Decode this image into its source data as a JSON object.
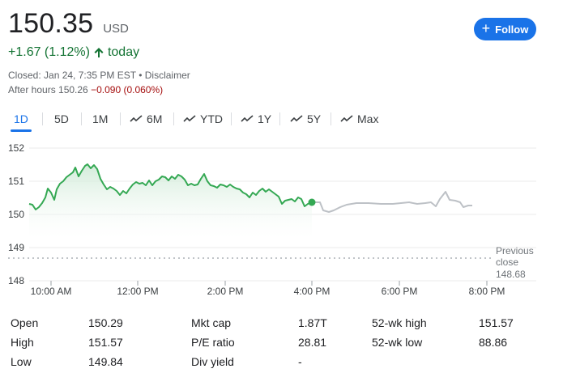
{
  "quote": {
    "price": "150.35",
    "currency": "USD",
    "change": "+1.67 (1.12%)",
    "change_period": "today",
    "closed_text": "Closed: Jan 24, 7:35 PM EST • Disclaimer",
    "after_hours_label": "After hours 150.26",
    "after_hours_change": "−0.090 (0.060%)"
  },
  "follow_button": {
    "label": "Follow",
    "icon": "plus-icon"
  },
  "tabs": [
    {
      "label": "1D",
      "icon": "",
      "active": true
    },
    {
      "label": "5D",
      "icon": ""
    },
    {
      "label": "1M",
      "icon": ""
    },
    {
      "label": "6M",
      "icon": "trend-icon"
    },
    {
      "label": "YTD",
      "icon": "trend-icon"
    },
    {
      "label": "1Y",
      "icon": "trend-icon"
    },
    {
      "label": "5Y",
      "icon": "trend-icon"
    },
    {
      "label": "Max",
      "icon": "trend-icon"
    }
  ],
  "chart_data": {
    "type": "line",
    "y_ticks": [
      "152",
      "151",
      "150",
      "149",
      "148"
    ],
    "ylim": [
      148,
      152
    ],
    "x_ticks": [
      "10:00 AM",
      "12:00 PM",
      "2:00 PM",
      "4:00 PM",
      "6:00 PM",
      "8:00 PM"
    ],
    "previous_close_label": [
      "Previous",
      "close",
      "148.68"
    ],
    "previous_close": 148.68,
    "colors": {
      "regular": "#34a853",
      "after_hours": "#bdc1c6",
      "fill": "#e6f4ea"
    }
  },
  "stats": {
    "col1": [
      {
        "label": "Open",
        "value": "150.29"
      },
      {
        "label": "High",
        "value": "151.57"
      },
      {
        "label": "Low",
        "value": "149.84"
      }
    ],
    "col2": [
      {
        "label": "Mkt cap",
        "value": "1.87T"
      },
      {
        "label": "P/E ratio",
        "value": "28.81"
      },
      {
        "label": "Div yield",
        "value": "-"
      }
    ],
    "col3": [
      {
        "label": "52-wk high",
        "value": "151.57"
      },
      {
        "label": "52-wk low",
        "value": "88.86"
      }
    ]
  }
}
